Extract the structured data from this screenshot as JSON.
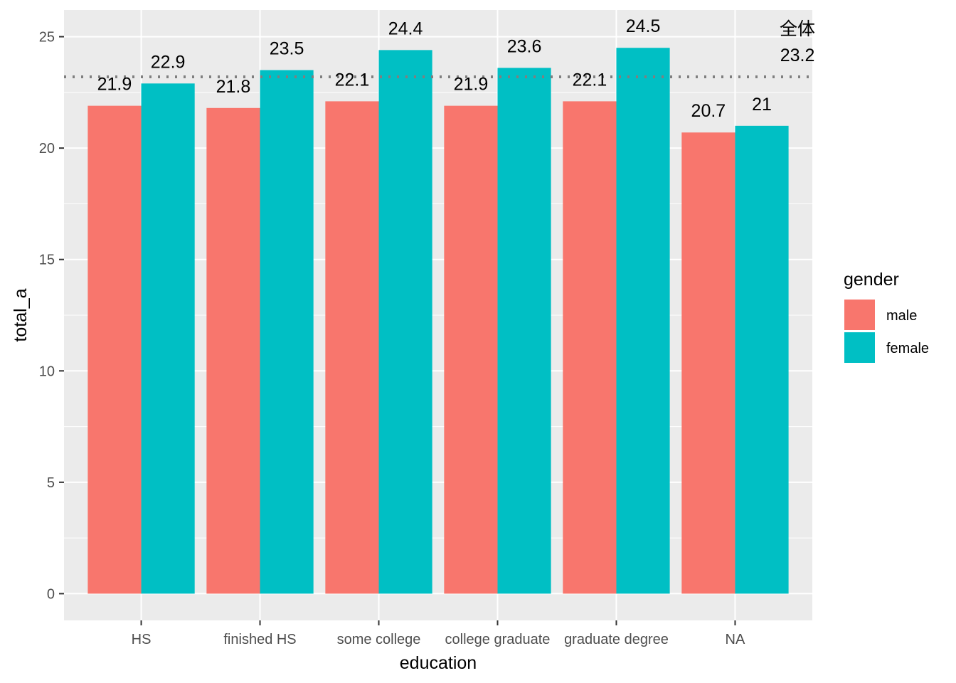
{
  "chart_data": {
    "type": "bar",
    "categories": [
      "HS",
      "finished HS",
      "some college",
      "college graduate",
      "graduate degree",
      "NA"
    ],
    "series": [
      {
        "name": "male",
        "color": "#F8766D",
        "values": [
          21.9,
          21.8,
          22.1,
          21.9,
          22.1,
          20.7
        ],
        "labels": [
          "21.9",
          "21.8",
          "22.1",
          "21.9",
          "22.1",
          "20.7"
        ]
      },
      {
        "name": "female",
        "color": "#00BFC4",
        "values": [
          22.9,
          23.5,
          24.4,
          23.6,
          24.5,
          21.0
        ],
        "labels": [
          "22.9",
          "23.5",
          "24.4",
          "23.6",
          "24.5",
          "21"
        ]
      }
    ],
    "xlabel": "education",
    "ylabel": "total_a",
    "ylim": [
      -1.2,
      26.2
    ],
    "yticks": [
      0,
      5,
      10,
      15,
      20,
      25
    ],
    "ytick_labels": [
      "0",
      "5",
      "10",
      "15",
      "20",
      "25"
    ],
    "grid": true,
    "reference_line": {
      "value": 23.2,
      "style": "dotted",
      "color": "#7f7f7f",
      "label_title": "全体",
      "label_value": "23.2"
    },
    "legend": {
      "title": "gender",
      "position": "right"
    },
    "panel_background": "#EBEBEB",
    "grid_color": "#FFFFFF"
  }
}
